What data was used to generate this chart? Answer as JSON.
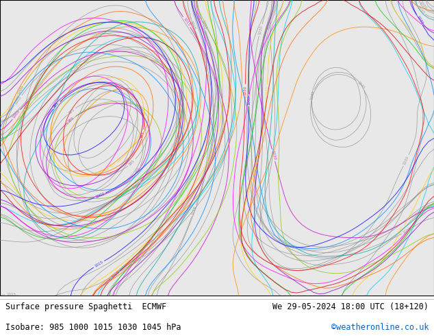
{
  "title_left": "Surface pressure Spaghetti  ECMWF",
  "title_right": "We 29-05-2024 18:00 UTC (18+120)",
  "subtitle_left": "Isobare: 985 1000 1015 1030 1045 hPa",
  "subtitle_right": "©weatheronline.co.uk",
  "subtitle_right_color": "#0066cc",
  "footer_text_color": "#000000",
  "bg_color": "#ffffff",
  "land_color": "#c8e8c0",
  "sea_color": "#e8e8e8",
  "fig_width": 6.34,
  "fig_height": 4.9,
  "dpi": 100,
  "footer_fontsize": 8.5,
  "ensemble_colors": [
    "#808080",
    "#808080",
    "#808080",
    "#808080",
    "#808080",
    "#808080",
    "#808080",
    "#808080",
    "#808080",
    "#808080",
    "#0088ff",
    "#00ccff",
    "#cc00cc",
    "#ff00ff",
    "#ff8800",
    "#ffcc00",
    "#00cc00",
    "#88cc00",
    "#ff0000",
    "#cc0000",
    "#8800cc",
    "#0000ff",
    "#00aaaa",
    "#ff6600"
  ],
  "map_extent": [
    -45,
    50,
    25,
    75
  ],
  "contour_levels": [
    985,
    1000,
    1015,
    1030,
    1045
  ]
}
